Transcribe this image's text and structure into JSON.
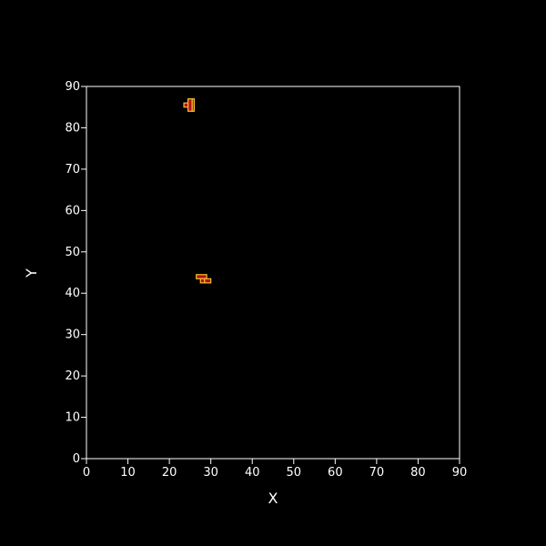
{
  "chart_data": {
    "type": "heatmap",
    "title": "",
    "xlabel": "X",
    "ylabel": "Y",
    "xlim": [
      0,
      90
    ],
    "ylim": [
      0,
      90
    ],
    "xticks": [
      0,
      10,
      20,
      30,
      40,
      50,
      60,
      70,
      80,
      90
    ],
    "yticks": [
      0,
      10,
      20,
      30,
      40,
      50,
      60,
      70,
      80,
      90
    ],
    "grid": false,
    "colors": {
      "background": "#000000",
      "axes": "#ffffff",
      "cell_fill": "#b5121b",
      "cell_outline": "#f2c12e"
    },
    "cells": [
      {
        "x": 23.5,
        "y": 85,
        "w": 1,
        "h": 1
      },
      {
        "x": 24.5,
        "y": 84,
        "w": 1,
        "h": 3
      },
      {
        "x": 25.5,
        "y": 84,
        "w": 0.5,
        "h": 3
      },
      {
        "x": 26.5,
        "y": 43.5,
        "w": 2.5,
        "h": 1
      },
      {
        "x": 27.5,
        "y": 42.5,
        "w": 1,
        "h": 1
      },
      {
        "x": 28.5,
        "y": 42.5,
        "w": 1.5,
        "h": 1
      }
    ]
  }
}
